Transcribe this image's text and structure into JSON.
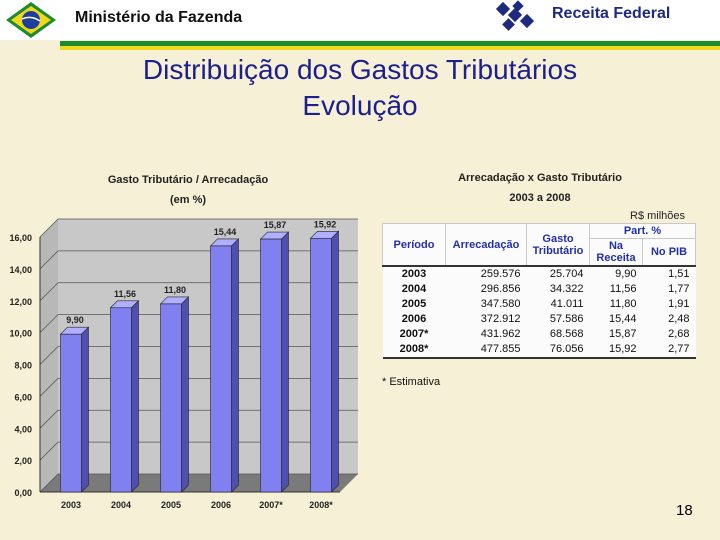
{
  "header": {
    "ministry": "Ministério da Fazenda",
    "agency": "Receita Federal"
  },
  "title": {
    "line1": "Distribuição dos Gastos Tributários",
    "line2": "Evolução"
  },
  "chart_data": {
    "type": "bar",
    "title": "Gasto Tributário / Arrecadação",
    "subtitle": "(em %)",
    "categories": [
      "2003",
      "2004",
      "2005",
      "2006",
      "2007*",
      "2008*"
    ],
    "values": [
      9.9,
      11.56,
      11.8,
      15.44,
      15.87,
      15.92
    ],
    "value_labels": [
      "9,90",
      "11,56",
      "11,80",
      "15,44",
      "15,87",
      "15,92"
    ],
    "ylim": [
      0,
      16
    ],
    "yticks": [
      "0,00",
      "2,00",
      "4,00",
      "6,00",
      "8,00",
      "10,00",
      "12,00",
      "14,00",
      "16,00"
    ],
    "bar_color": "#8080f0",
    "grid": true,
    "xlabel": "",
    "ylabel": ""
  },
  "table": {
    "title_line1": "Arrecadação x Gasto Tributário",
    "title_line2": "2003 a 2008",
    "unit": "R$ milhões",
    "headers": {
      "periodo": "Período",
      "arrecadacao": "Arrecadação",
      "gasto": "Gasto Tributário",
      "part": "Part. %",
      "receita": "Na Receita",
      "pib": "No PIB"
    },
    "rows": [
      {
        "periodo": "2003",
        "arrecadacao": "259.576",
        "gasto": "25.704",
        "receita": "9,90",
        "pib": "1,51"
      },
      {
        "periodo": "2004",
        "arrecadacao": "296.856",
        "gasto": "34.322",
        "receita": "11,56",
        "pib": "1,77"
      },
      {
        "periodo": "2005",
        "arrecadacao": "347.580",
        "gasto": "41.011",
        "receita": "11,80",
        "pib": "1,91"
      },
      {
        "periodo": "2006",
        "arrecadacao": "372.912",
        "gasto": "57.586",
        "receita": "15,44",
        "pib": "2,48"
      },
      {
        "periodo": "2007*",
        "arrecadacao": "431.962",
        "gasto": "68.568",
        "receita": "15,87",
        "pib": "2,68"
      },
      {
        "periodo": "2008*",
        "arrecadacao": "477.855",
        "gasto": "76.056",
        "receita": "15,92",
        "pib": "2,77"
      }
    ],
    "note": "* Estimativa"
  },
  "page_number": "18"
}
